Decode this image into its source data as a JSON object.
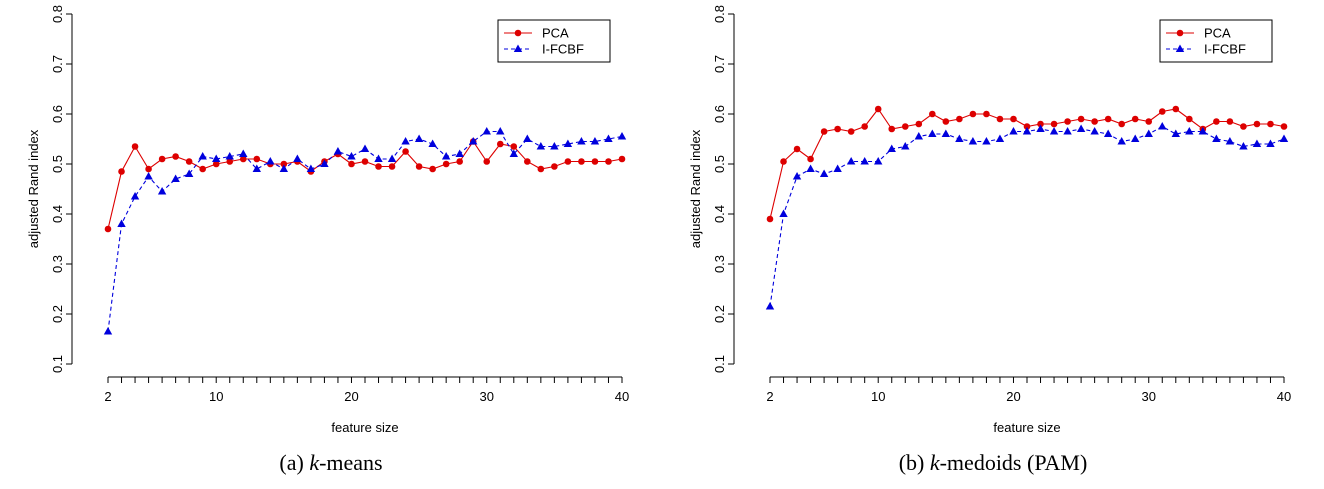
{
  "colors": {
    "pca": "#dd0000",
    "ifcbf": "#0000dd"
  },
  "chart_data": [
    {
      "type": "line",
      "caption": {
        "prefix": "(a) ",
        "italic": "k",
        "suffix": "-means"
      },
      "xlabel": "feature size",
      "ylabel": "adjusted Rand index",
      "xlim": [
        2,
        40
      ],
      "ylim": [
        0.1,
        0.8
      ],
      "xticks": [
        2,
        10,
        20,
        30,
        40
      ],
      "yticks": [
        0.1,
        0.2,
        0.3,
        0.4,
        0.5,
        0.6,
        0.7,
        0.8
      ],
      "legend": {
        "position": "top-right",
        "entries": [
          "PCA",
          "I-FCBF"
        ]
      },
      "x": [
        2,
        3,
        4,
        5,
        6,
        7,
        8,
        9,
        10,
        11,
        12,
        13,
        14,
        15,
        16,
        17,
        18,
        19,
        20,
        21,
        22,
        23,
        24,
        25,
        26,
        27,
        28,
        29,
        30,
        31,
        32,
        33,
        34,
        35,
        36,
        37,
        38,
        39,
        40
      ],
      "series": [
        {
          "name": "PCA",
          "marker": "circle",
          "line": "solid",
          "values": [
            0.37,
            0.485,
            0.535,
            0.49,
            0.51,
            0.515,
            0.505,
            0.49,
            0.5,
            0.505,
            0.51,
            0.51,
            0.5,
            0.5,
            0.505,
            0.485,
            0.505,
            0.52,
            0.5,
            0.505,
            0.495,
            0.495,
            0.525,
            0.495,
            0.49,
            0.5,
            0.505,
            0.545,
            0.505,
            0.54,
            0.535,
            0.505,
            0.49,
            0.495,
            0.505,
            0.505,
            0.505,
            0.505,
            0.51
          ]
        },
        {
          "name": "I-FCBF",
          "marker": "triangle",
          "line": "dashed",
          "values": [
            0.165,
            0.38,
            0.435,
            0.475,
            0.445,
            0.47,
            0.48,
            0.515,
            0.51,
            0.515,
            0.52,
            0.49,
            0.505,
            0.49,
            0.51,
            0.49,
            0.5,
            0.525,
            0.515,
            0.53,
            0.51,
            0.51,
            0.545,
            0.55,
            0.54,
            0.515,
            0.52,
            0.545,
            0.565,
            0.565,
            0.52,
            0.55,
            0.535,
            0.535,
            0.54,
            0.545,
            0.545,
            0.55,
            0.555
          ]
        }
      ]
    },
    {
      "type": "line",
      "caption": {
        "prefix": "(b) ",
        "italic": "k",
        "suffix": "-medoids (PAM)"
      },
      "xlabel": "feature size",
      "ylabel": "adjusted Rand index",
      "xlim": [
        2,
        40
      ],
      "ylim": [
        0.1,
        0.8
      ],
      "xticks": [
        2,
        10,
        20,
        30,
        40
      ],
      "yticks": [
        0.1,
        0.2,
        0.3,
        0.4,
        0.5,
        0.6,
        0.7,
        0.8
      ],
      "legend": {
        "position": "top-right",
        "entries": [
          "PCA",
          "I-FCBF"
        ]
      },
      "x": [
        2,
        3,
        4,
        5,
        6,
        7,
        8,
        9,
        10,
        11,
        12,
        13,
        14,
        15,
        16,
        17,
        18,
        19,
        20,
        21,
        22,
        23,
        24,
        25,
        26,
        27,
        28,
        29,
        30,
        31,
        32,
        33,
        34,
        35,
        36,
        37,
        38,
        39,
        40
      ],
      "series": [
        {
          "name": "PCA",
          "marker": "circle",
          "line": "solid",
          "values": [
            0.39,
            0.505,
            0.53,
            0.51,
            0.565,
            0.57,
            0.565,
            0.575,
            0.61,
            0.57,
            0.575,
            0.58,
            0.6,
            0.585,
            0.59,
            0.6,
            0.6,
            0.59,
            0.59,
            0.575,
            0.58,
            0.58,
            0.585,
            0.59,
            0.585,
            0.59,
            0.58,
            0.59,
            0.585,
            0.605,
            0.61,
            0.59,
            0.57,
            0.585,
            0.585,
            0.575,
            0.58,
            0.58,
            0.575
          ]
        },
        {
          "name": "I-FCBF",
          "marker": "triangle",
          "line": "dashed",
          "values": [
            0.215,
            0.4,
            0.475,
            0.49,
            0.48,
            0.49,
            0.505,
            0.505,
            0.505,
            0.53,
            0.535,
            0.555,
            0.56,
            0.56,
            0.55,
            0.545,
            0.545,
            0.55,
            0.565,
            0.565,
            0.57,
            0.565,
            0.565,
            0.57,
            0.565,
            0.56,
            0.545,
            0.55,
            0.56,
            0.575,
            0.56,
            0.565,
            0.565,
            0.55,
            0.545,
            0.535,
            0.54,
            0.54,
            0.55
          ]
        }
      ]
    }
  ]
}
